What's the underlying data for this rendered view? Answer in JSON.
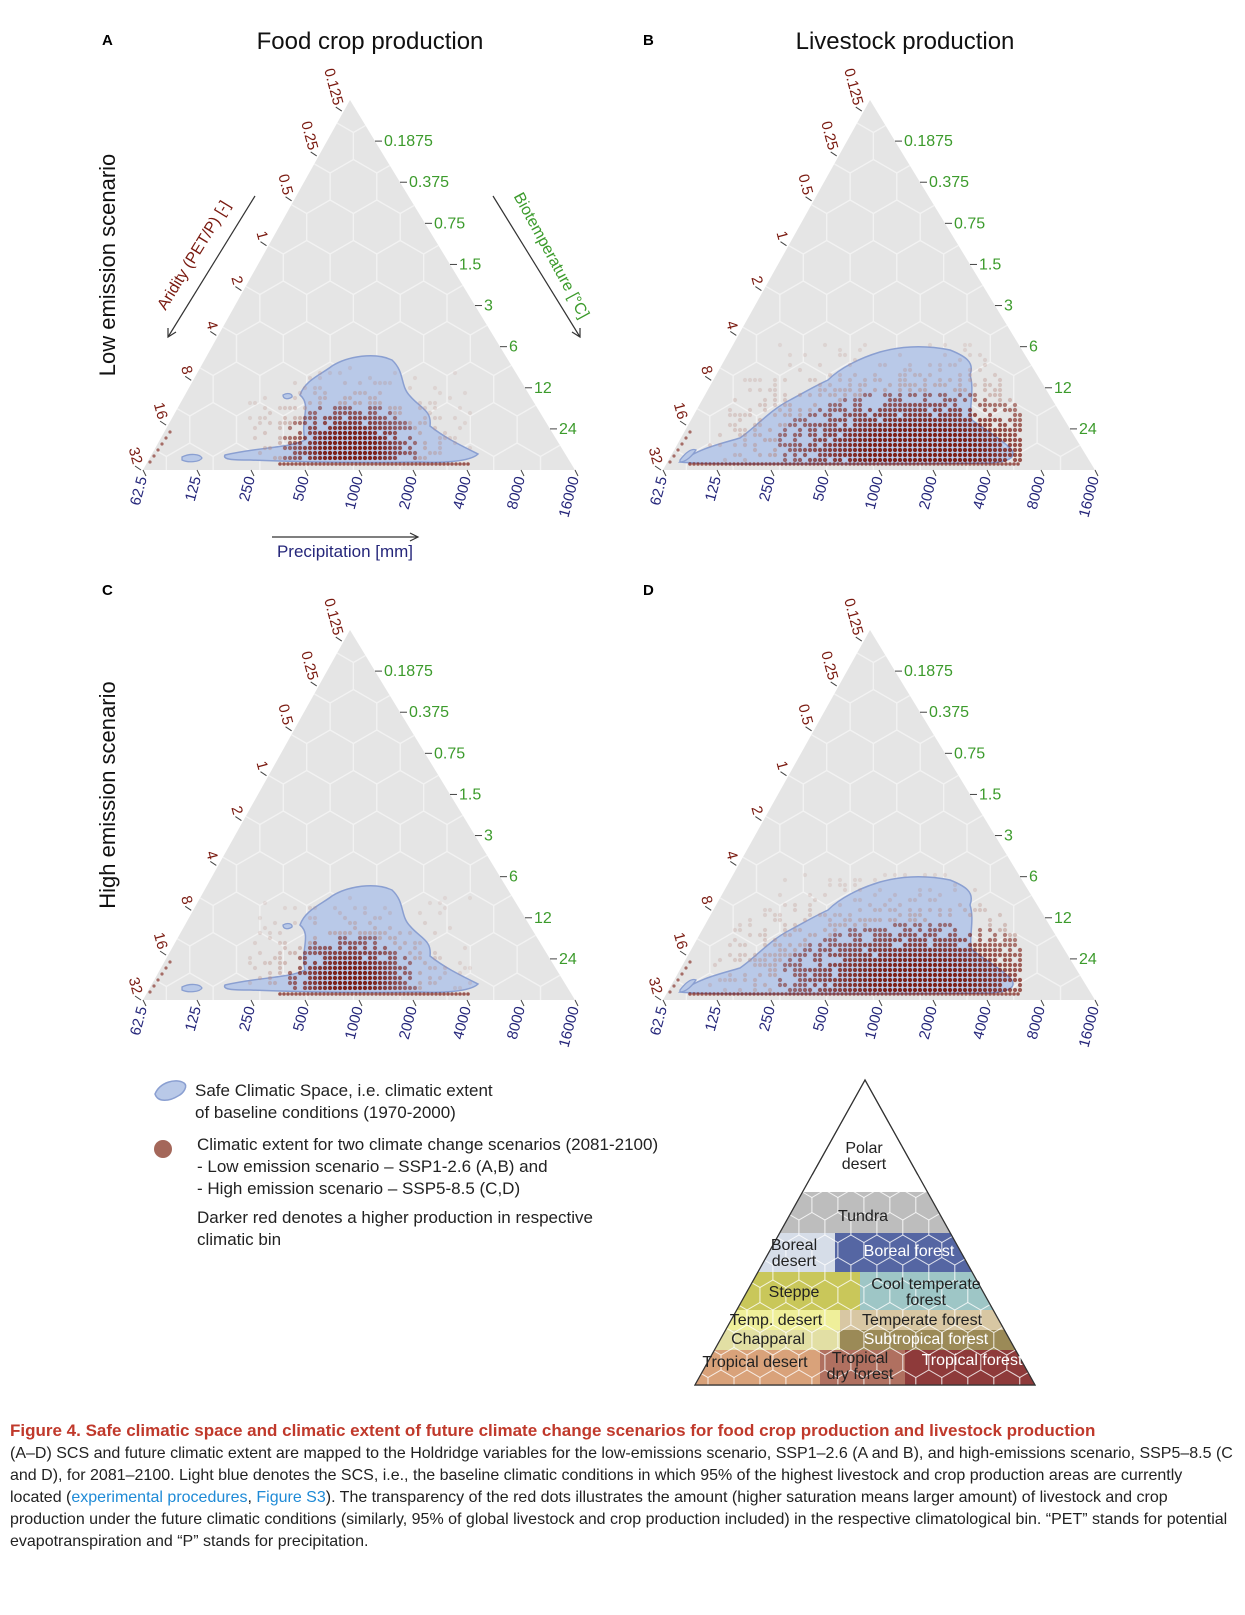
{
  "chart_data": [
    {
      "type": "scatter",
      "panel": "A",
      "title": "Food crop production",
      "row_label": "Low emission scenario",
      "scenario": "SSP1-2.6",
      "kind": "crop"
    },
    {
      "type": "scatter",
      "panel": "B",
      "title": "Livestock production",
      "scenario": "SSP1-2.6",
      "kind": "livestock"
    },
    {
      "type": "scatter",
      "panel": "C",
      "row_label": "High emission scenario",
      "scenario": "SSP5-8.5",
      "kind": "crop"
    },
    {
      "type": "scatter",
      "panel": "D",
      "scenario": "SSP5-8.5",
      "kind": "livestock"
    }
  ],
  "axes": {
    "aridity_label": "Aridity (PET/P) [-]",
    "aridity_ticks": [
      "0.125",
      "0.25",
      "0.5",
      "1",
      "2",
      "4",
      "8",
      "16",
      "32"
    ],
    "biotemp_label": "Biotemperature [°C]",
    "biotemp_ticks": [
      "0.1875",
      "0.375",
      "0.75",
      "1.5",
      "3",
      "6",
      "12",
      "24"
    ],
    "precip_label": "Precipitation [mm]",
    "precip_ticks": [
      "62.5",
      "125",
      "250",
      "500",
      "1000",
      "2000",
      "4000",
      "8000",
      "16000"
    ]
  },
  "colors": {
    "triangle_fill": "#e5e5e5",
    "scs_fill": "#b9c9e8",
    "scs_stroke": "#8a9fd1",
    "dot_color": "#7a1a10",
    "aridity_color": "#7a1a10",
    "biotemp_color": "#3c9b2c",
    "precip_color": "#25267a"
  },
  "legend": {
    "scs_line1": "Safe Climatic Space, i.e. climatic extent",
    "scs_line2": "of baseline conditions (1970-2000)",
    "future_line1": "Climatic extent for two climate change scenarios (2081-2100)",
    "future_line2": "- Low emission scenario – SSP1-2.6 (A,B) and",
    "future_line3": "- High emission scenario – SSP5-8.5 (C,D)",
    "darker_line1": "Darker red denotes a higher production in respective",
    "darker_line2": "climatic bin"
  },
  "biomes": [
    {
      "label": "Polar\ndesert",
      "color": "#ffffff",
      "text": "#222"
    },
    {
      "label": "Tundra",
      "color": "#bdbdbd",
      "text": "#222"
    },
    {
      "label": "Boreal\ndesert",
      "color": "#d6dde8",
      "text": "#222"
    },
    {
      "label": "Boreal forest",
      "color": "#5566a3",
      "text": "#ffffff"
    },
    {
      "label": "Steppe",
      "color": "#c9c75a",
      "text": "#222"
    },
    {
      "label": "Cool temperate\nforest",
      "color": "#9ec6c6",
      "text": "#222"
    },
    {
      "label": "Temp. desert",
      "color": "#efef9a",
      "text": "#222"
    },
    {
      "label": "Chapparal",
      "color": "#e2dfa4",
      "text": "#222"
    },
    {
      "label": "Temperate forest",
      "color": "#d8c7a3",
      "text": "#222"
    },
    {
      "label": "Subtropical forest",
      "color": "#9b8a57",
      "text": "#ffffff"
    },
    {
      "label": "Tropical desert",
      "color": "#d9a27a",
      "text": "#222"
    },
    {
      "label": "Tropical\ndry forest",
      "color": "#b07060",
      "text": "#222"
    },
    {
      "label": "Tropical forest",
      "color": "#8e3a3a",
      "text": "#ffffff"
    }
  ],
  "caption": {
    "title": "Figure 4.  Safe climatic space and climatic extent of future climate change scenarios for food crop production and livestock production",
    "body_1": "(A–D) SCS and future climatic extent are mapped to the Holdridge variables for the low-emissions scenario, SSP1–2.6 (A and B), and high-emissions scenario, SSP5–8.5 (C and D), for 2081–2100. Light blue denotes the SCS, i.e., the baseline climatic conditions in which 95% of the highest livestock and crop production areas are currently located (",
    "link_1": "experimental procedures",
    "sep": ", ",
    "link_2": "Figure S3",
    "body_2": "). The transparency of the red dots illustrates the amount (higher saturation means larger amount) of livestock and crop production under the future climatic conditions (similarly, 95% of global livestock and crop production included) in the respective climatological bin. “PET” stands for potential evapotranspiration and “P” stands for precipitation."
  }
}
